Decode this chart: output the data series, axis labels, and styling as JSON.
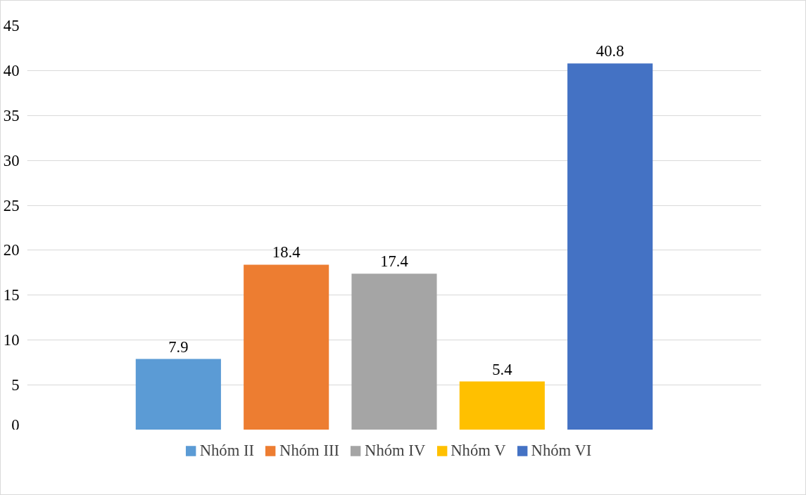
{
  "chart_data": {
    "type": "bar",
    "categories": [
      null
    ],
    "series": [
      {
        "name": "Nhóm II",
        "color": "#5b9bd5",
        "values": [
          7.9
        ]
      },
      {
        "name": "Nhóm III",
        "color": "#ed7d31",
        "values": [
          18.4
        ]
      },
      {
        "name": "Nhóm IV",
        "color": "#a5a5a5",
        "values": [
          17.4
        ]
      },
      {
        "name": "Nhóm V",
        "color": "#ffc000",
        "values": [
          5.4
        ]
      },
      {
        "name": "Nhóm VI",
        "color": "#4472c4",
        "values": [
          40.8
        ]
      }
    ],
    "ylim": [
      0,
      45
    ],
    "yticks": [
      0,
      5,
      10,
      15,
      20,
      25,
      30,
      35,
      40,
      45
    ],
    "grid": "y",
    "legend": "bottom",
    "data_labels": true
  }
}
